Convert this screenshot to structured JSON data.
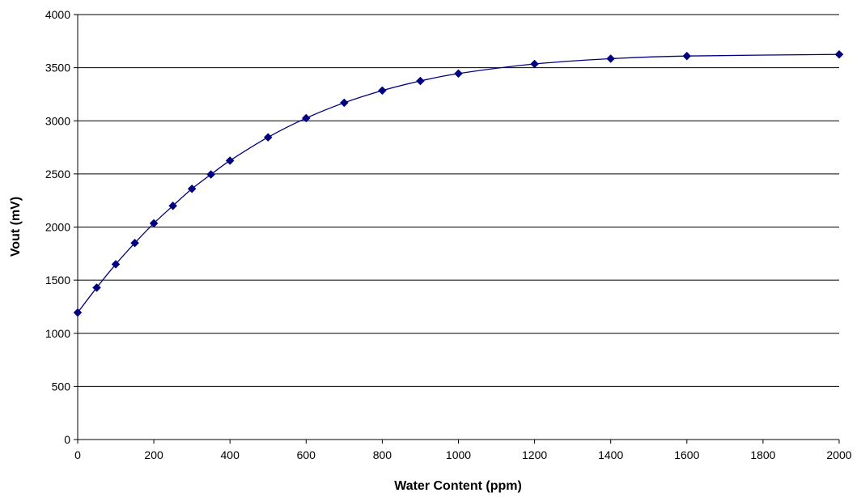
{
  "chart_data": {
    "type": "line",
    "title": "",
    "xlabel": "Water Content (ppm)",
    "ylabel": "Vout (mV)",
    "xlim": [
      0,
      2000
    ],
    "ylim": [
      0,
      4000
    ],
    "x_ticks": [
      "0",
      "200",
      "400",
      "600",
      "800",
      "1000",
      "1200",
      "1400",
      "1600",
      "1800",
      "2000"
    ],
    "y_ticks": [
      "0",
      "500",
      "1000",
      "1500",
      "2000",
      "2500",
      "3000",
      "3500",
      "4000"
    ],
    "grid": "horizontal",
    "legend": "none",
    "marker": "diamond",
    "series": [
      {
        "color": "#000080",
        "x": [
          0,
          50,
          100,
          150,
          200,
          250,
          300,
          350,
          400,
          500,
          600,
          700,
          800,
          900,
          1000,
          1200,
          1400,
          1600,
          2000
        ],
        "y": [
          1195,
          1430,
          1650,
          1850,
          2035,
          2200,
          2360,
          2495,
          2625,
          2845,
          3025,
          3170,
          3285,
          3375,
          3445,
          3535,
          3585,
          3610,
          3625
        ]
      }
    ]
  }
}
